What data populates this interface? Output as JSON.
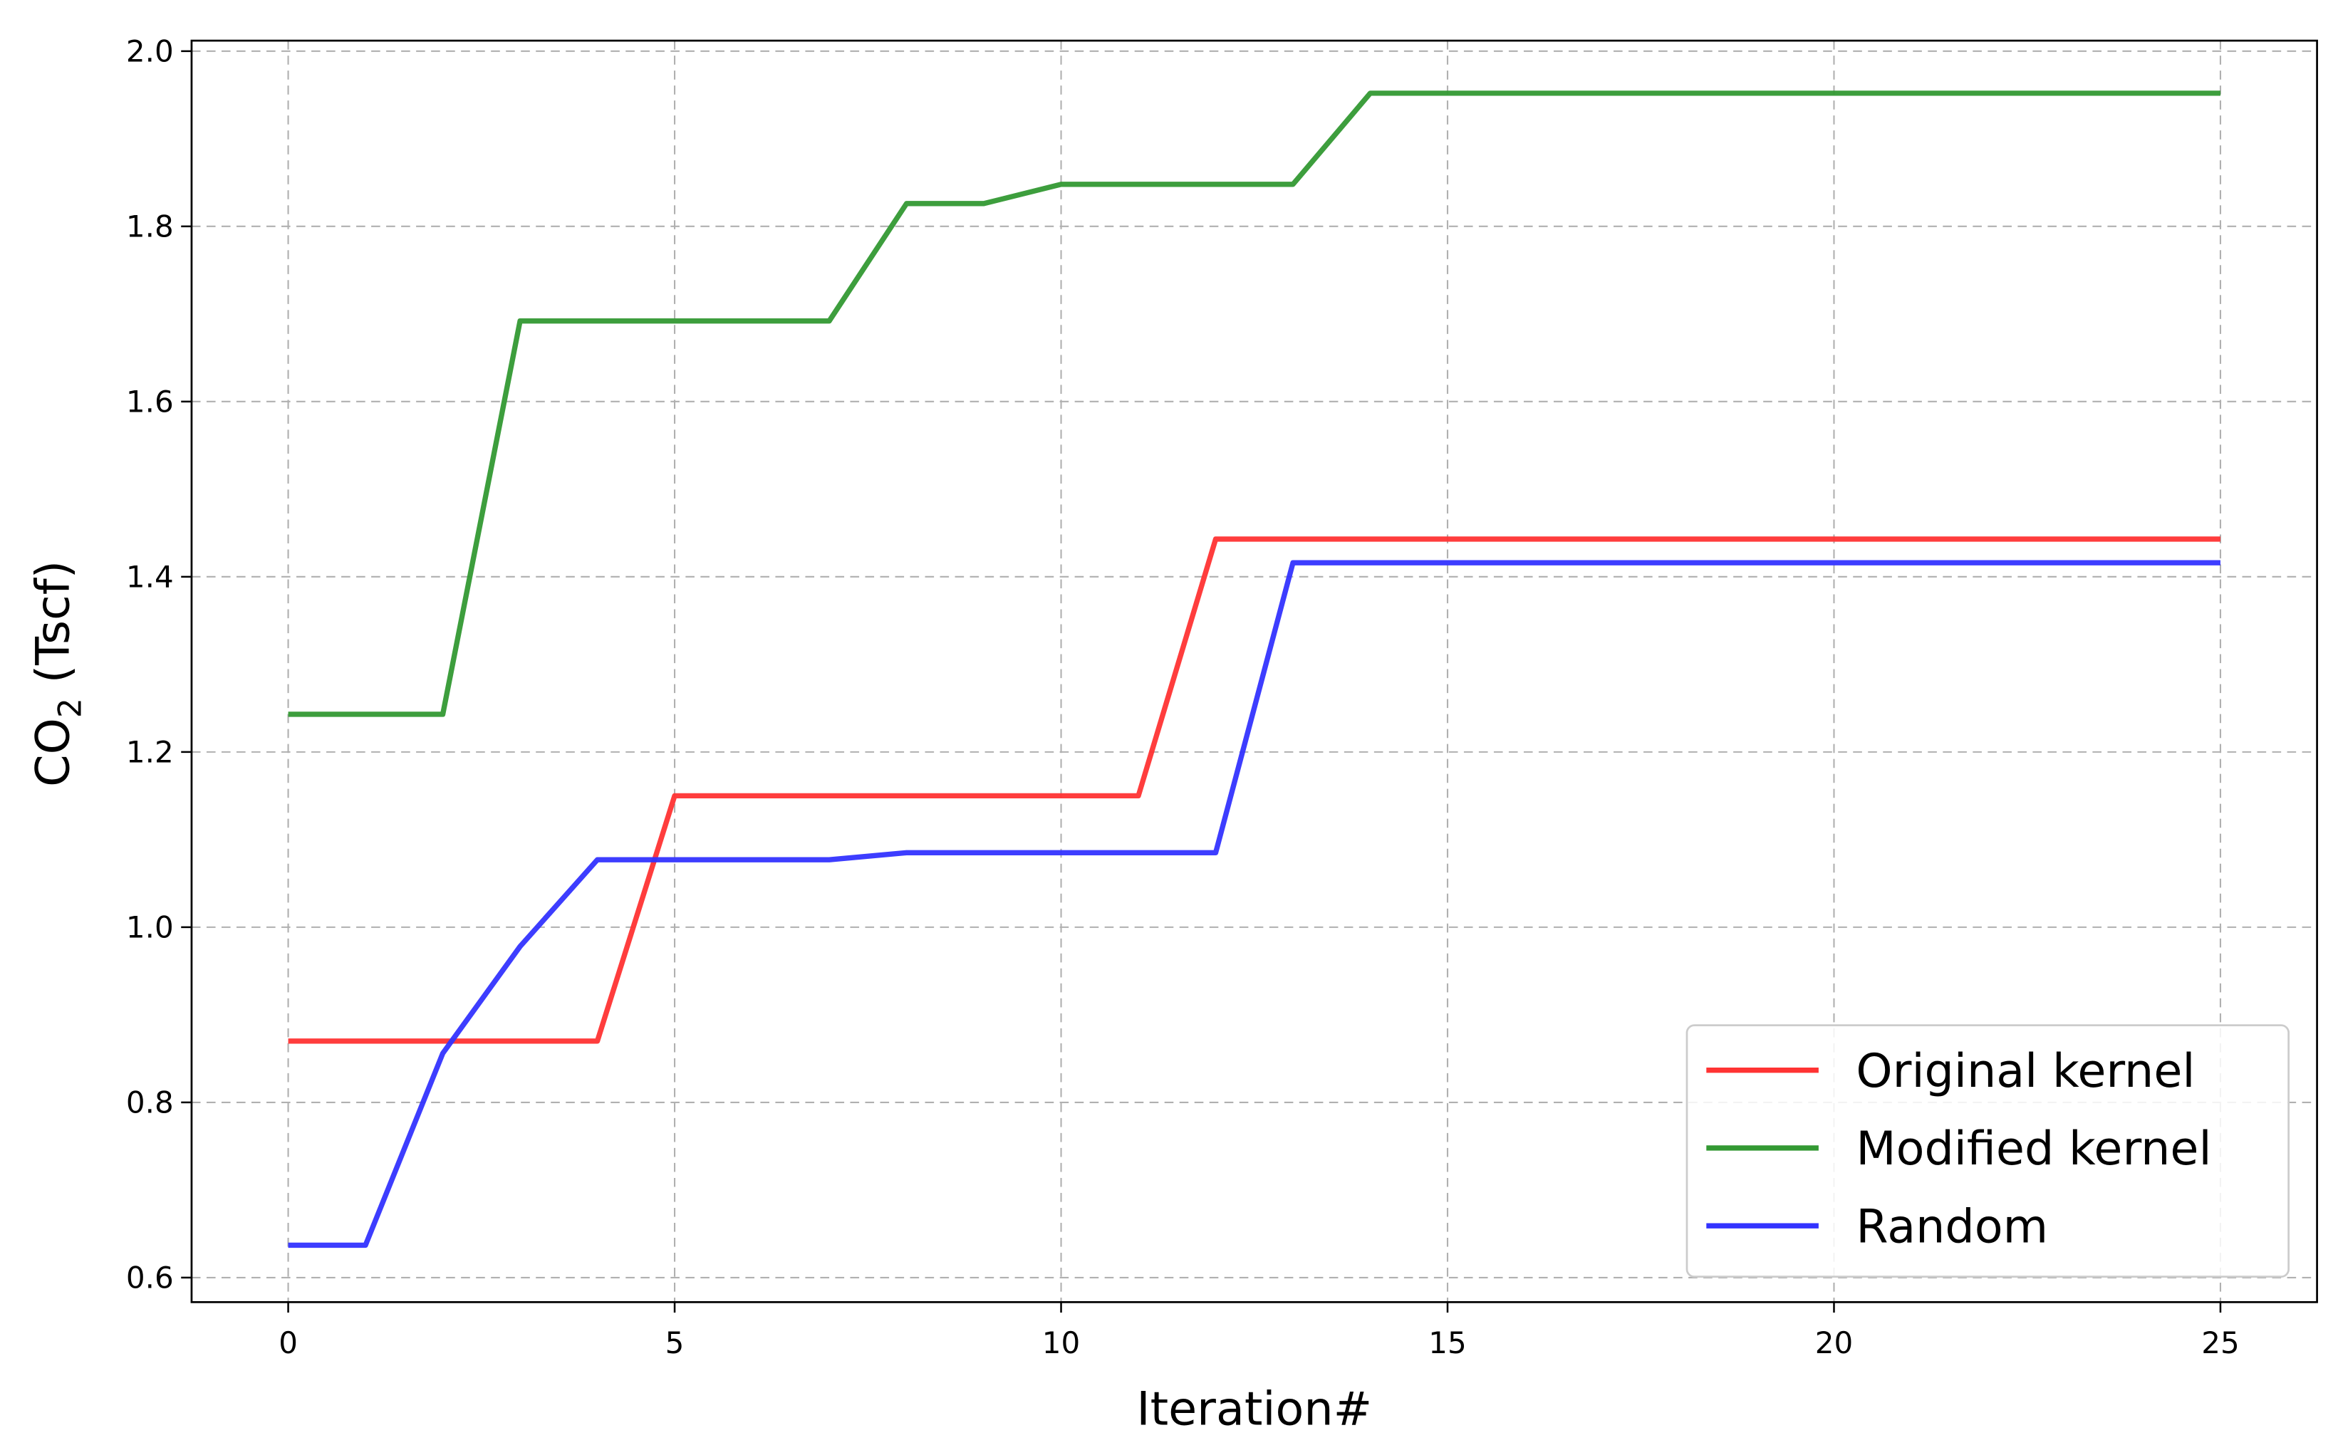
{
  "chart_data": {
    "type": "line",
    "title": "",
    "xlabel": "Iteration#",
    "ylabel": {
      "main": "CO",
      "sub": "2",
      "rest": " (Tscf)"
    },
    "xlim": [
      -1.25,
      26.25
    ],
    "ylim": [
      0.572,
      2.012
    ],
    "xticks": [
      0,
      5,
      10,
      15,
      20,
      25
    ],
    "xtick_labels": [
      "0",
      "5",
      "10",
      "15",
      "20",
      "25"
    ],
    "yticks": [
      0.6,
      0.8,
      1.0,
      1.2,
      1.4,
      1.6,
      1.8,
      2.0
    ],
    "ytick_labels": [
      "0.6",
      "0.8",
      "1.0",
      "1.2",
      "1.4",
      "1.6",
      "1.8",
      "2.0"
    ],
    "grid": true,
    "legend_position": "lower-right",
    "x": [
      0,
      1,
      2,
      3,
      4,
      5,
      6,
      7,
      8,
      9,
      10,
      11,
      12,
      13,
      14,
      15,
      16,
      17,
      18,
      19,
      20,
      21,
      22,
      23,
      24,
      25
    ],
    "series": [
      {
        "name": "Original kernel",
        "color": "#ff3333",
        "values": [
          0.87,
          0.87,
          0.87,
          0.87,
          0.87,
          1.15,
          1.15,
          1.15,
          1.15,
          1.15,
          1.15,
          1.15,
          1.443,
          1.443,
          1.443,
          1.443,
          1.443,
          1.443,
          1.443,
          1.443,
          1.443,
          1.443,
          1.443,
          1.443,
          1.443,
          1.443
        ]
      },
      {
        "name": "Modified kernel",
        "color": "#339933",
        "values": [
          1.243,
          1.243,
          1.243,
          1.692,
          1.692,
          1.692,
          1.692,
          1.692,
          1.826,
          1.826,
          1.848,
          1.848,
          1.848,
          1.848,
          1.952,
          1.952,
          1.952,
          1.952,
          1.952,
          1.952,
          1.952,
          1.952,
          1.952,
          1.952,
          1.952,
          1.952
        ]
      },
      {
        "name": "Random",
        "color": "#3333ff",
        "values": [
          0.637,
          0.637,
          0.856,
          0.978,
          1.077,
          1.077,
          1.077,
          1.077,
          1.085,
          1.085,
          1.085,
          1.085,
          1.085,
          1.416,
          1.416,
          1.416,
          1.416,
          1.416,
          1.416,
          1.416,
          1.416,
          1.416,
          1.416,
          1.416,
          1.416,
          1.416
        ]
      }
    ]
  }
}
